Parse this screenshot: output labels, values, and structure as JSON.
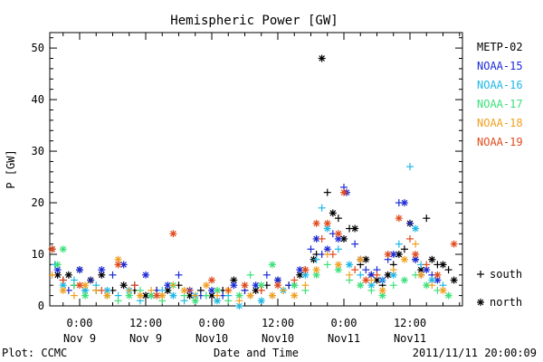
{
  "colors": {
    "METP-02": "#000000",
    "NOAA-15": "#1d2bd6",
    "NOAA-16": "#1fb8e6",
    "NOAA-17": "#3ce07a",
    "NOAA-18": "#f0a020",
    "NOAA-19": "#e04a1c"
  },
  "footer": {
    "left": "Plot: CCMC",
    "right": "2011/11/11 20:00:09"
  },
  "chart_data": {
    "type": "scatter",
    "title": "Hemispheric Power [GW]",
    "xlabel": "Date and Time",
    "ylabel": "P [GW]",
    "ylim": [
      0,
      53
    ],
    "xlim_hours": [
      -3,
      40
    ],
    "yticks": [
      0,
      10,
      20,
      30,
      40,
      50
    ],
    "xticks": [
      {
        "hour": 0,
        "top": "0:00",
        "bottom": "Nov 9"
      },
      {
        "hour": 12,
        "top": "12:00",
        "bottom": "Nov 9"
      },
      {
        "hour": 24,
        "top": "0:00",
        "bottom": "Nov10"
      },
      {
        "hour": 36,
        "top": "12:00",
        "bottom": "Nov10"
      },
      {
        "hour": 48,
        "top": "0:00",
        "bottom": "Nov11"
      },
      {
        "hour": 60,
        "top": "12:00",
        "bottom": "Nov11"
      }
    ],
    "legend_markers": [
      {
        "symbol": "+",
        "label": "south"
      },
      {
        "symbol": "*",
        "label": "north"
      }
    ],
    "series": [
      {
        "name": "METP-02",
        "points": [
          [
            -5.5,
            12,
            "+"
          ],
          [
            -5,
            11,
            "*"
          ],
          [
            -4.5,
            8,
            "+"
          ],
          [
            -4,
            6,
            "*"
          ],
          [
            -3,
            5,
            "+"
          ],
          [
            -2,
            6,
            "*"
          ],
          [
            -1,
            4,
            "+"
          ],
          [
            0,
            7,
            "*"
          ],
          [
            1,
            3,
            "+"
          ],
          [
            2,
            5,
            "*"
          ],
          [
            3,
            3,
            "+"
          ],
          [
            4,
            6,
            "*"
          ],
          [
            6,
            3,
            "+"
          ],
          [
            8,
            4,
            "*"
          ],
          [
            10,
            3,
            "+"
          ],
          [
            12,
            2,
            "*"
          ],
          [
            14,
            3,
            "+"
          ],
          [
            16,
            3,
            "*"
          ],
          [
            18,
            4,
            "+"
          ],
          [
            20,
            2,
            "*"
          ],
          [
            22,
            3,
            "+"
          ],
          [
            24,
            2,
            "*"
          ],
          [
            26,
            3,
            "+"
          ],
          [
            28,
            5,
            "*"
          ],
          [
            30,
            3,
            "+"
          ],
          [
            32,
            3,
            "*"
          ],
          [
            34,
            4,
            "+"
          ],
          [
            36,
            5,
            "*"
          ],
          [
            38,
            4,
            "+"
          ],
          [
            40,
            6,
            "*"
          ],
          [
            41,
            7,
            "+"
          ],
          [
            42.5,
            9,
            "*"
          ],
          [
            43,
            10,
            "+"
          ],
          [
            44,
            48,
            "*"
          ],
          [
            45,
            22,
            "+"
          ],
          [
            46,
            18,
            "*"
          ],
          [
            47,
            17,
            "+"
          ],
          [
            48,
            13,
            "*"
          ],
          [
            49,
            15,
            "+"
          ],
          [
            50,
            15,
            "*"
          ],
          [
            51,
            8,
            "+"
          ],
          [
            52,
            9,
            "*"
          ],
          [
            53,
            6,
            "+"
          ],
          [
            54,
            5,
            "*"
          ],
          [
            55,
            4,
            "+"
          ],
          [
            56,
            6,
            "*"
          ],
          [
            57,
            8,
            "+"
          ],
          [
            58,
            10,
            "*"
          ],
          [
            59,
            11,
            "+"
          ],
          [
            60,
            16,
            "*"
          ],
          [
            61,
            9,
            "+"
          ],
          [
            62,
            7,
            "*"
          ],
          [
            63,
            17,
            "+"
          ],
          [
            64,
            9,
            "*"
          ],
          [
            65,
            8,
            "+"
          ],
          [
            66,
            8,
            "*"
          ],
          [
            67,
            7,
            "+"
          ],
          [
            68,
            5,
            "*"
          ]
        ]
      },
      {
        "name": "NOAA-15",
        "points": [
          [
            -4,
            7,
            "*"
          ],
          [
            -2,
            3,
            "+"
          ],
          [
            0,
            7,
            "*"
          ],
          [
            2,
            5,
            "+"
          ],
          [
            4,
            7,
            "*"
          ],
          [
            6,
            6,
            "+"
          ],
          [
            8,
            8,
            "*"
          ],
          [
            10,
            4,
            "+"
          ],
          [
            12,
            6,
            "*"
          ],
          [
            14,
            3,
            "+"
          ],
          [
            16,
            4,
            "*"
          ],
          [
            18,
            6,
            "+"
          ],
          [
            20,
            3,
            "*"
          ],
          [
            22,
            2,
            "+"
          ],
          [
            24,
            3,
            "*"
          ],
          [
            26,
            2,
            "+"
          ],
          [
            28,
            4,
            "*"
          ],
          [
            30,
            3,
            "+"
          ],
          [
            32,
            4,
            "*"
          ],
          [
            34,
            6,
            "+"
          ],
          [
            36,
            5,
            "*"
          ],
          [
            38,
            4,
            "+"
          ],
          [
            40,
            7,
            "*"
          ],
          [
            42,
            11,
            "+"
          ],
          [
            43,
            13,
            "*"
          ],
          [
            44,
            10,
            "+"
          ],
          [
            45,
            11,
            "*"
          ],
          [
            46,
            14,
            "+"
          ],
          [
            47,
            13,
            "*"
          ],
          [
            48,
            23,
            "+"
          ],
          [
            48.5,
            22,
            "*"
          ],
          [
            50,
            12,
            "+"
          ],
          [
            51,
            9,
            "*"
          ],
          [
            52,
            7,
            "+"
          ],
          [
            53,
            6,
            "*"
          ],
          [
            54,
            7,
            "+"
          ],
          [
            55,
            5,
            "*"
          ],
          [
            56,
            9,
            "+"
          ],
          [
            57,
            10,
            "*"
          ],
          [
            58,
            20,
            "+"
          ],
          [
            59,
            20,
            "*"
          ],
          [
            60,
            16,
            "+"
          ],
          [
            61,
            9,
            "*"
          ],
          [
            62,
            6,
            "+"
          ],
          [
            63,
            7,
            "*"
          ],
          [
            64,
            6,
            "+"
          ],
          [
            65,
            5,
            "*"
          ]
        ]
      },
      {
        "name": "NOAA-16",
        "points": [
          [
            -4.5,
            8,
            "+"
          ],
          [
            -3,
            4,
            "*"
          ],
          [
            -1,
            5,
            "+"
          ],
          [
            1,
            3,
            "*"
          ],
          [
            3,
            4,
            "+"
          ],
          [
            5,
            3,
            "*"
          ],
          [
            7,
            2,
            "+"
          ],
          [
            9,
            3,
            "*"
          ],
          [
            11,
            1,
            "+"
          ],
          [
            13,
            2,
            "*"
          ],
          [
            15,
            3,
            "+"
          ],
          [
            17,
            2,
            "*"
          ],
          [
            19,
            1,
            "+"
          ],
          [
            21,
            2,
            "*"
          ],
          [
            23,
            2,
            "+"
          ],
          [
            25,
            1,
            "*"
          ],
          [
            27,
            2,
            "+"
          ],
          [
            29,
            0,
            "*"
          ],
          [
            31,
            2,
            "+"
          ],
          [
            33,
            1,
            "*"
          ],
          [
            35,
            2,
            "+"
          ],
          [
            37,
            3,
            "*"
          ],
          [
            39,
            4,
            "+"
          ],
          [
            41,
            6,
            "*"
          ],
          [
            43,
            9,
            "+"
          ],
          [
            44,
            19,
            "+"
          ],
          [
            45,
            15,
            "*"
          ],
          [
            47,
            11,
            "+"
          ],
          [
            49,
            8,
            "*"
          ],
          [
            51,
            6,
            "+"
          ],
          [
            53,
            4,
            "*"
          ],
          [
            55,
            5,
            "+"
          ],
          [
            57,
            6,
            "*"
          ],
          [
            58,
            12,
            "+"
          ],
          [
            60,
            27,
            "+"
          ],
          [
            61,
            15,
            "*"
          ],
          [
            62,
            8,
            "+"
          ],
          [
            64,
            5,
            "*"
          ],
          [
            66,
            4,
            "+"
          ]
        ]
      },
      {
        "name": "NOAA-17",
        "points": [
          [
            -4,
            8,
            "*"
          ],
          [
            -3,
            11,
            "*"
          ],
          [
            -1,
            4,
            "+"
          ],
          [
            1,
            2,
            "*"
          ],
          [
            3,
            3,
            "+"
          ],
          [
            5,
            2,
            "*"
          ],
          [
            7,
            1,
            "+"
          ],
          [
            9,
            2,
            "*"
          ],
          [
            11,
            3,
            "+"
          ],
          [
            13,
            2,
            "*"
          ],
          [
            15,
            1,
            "+"
          ],
          [
            17,
            4,
            "*"
          ],
          [
            19,
            2,
            "+"
          ],
          [
            21,
            1,
            "*"
          ],
          [
            23,
            2,
            "+"
          ],
          [
            25,
            3,
            "*"
          ],
          [
            27,
            1,
            "+"
          ],
          [
            29,
            2,
            "*"
          ],
          [
            31,
            6,
            "+"
          ],
          [
            33,
            4,
            "*"
          ],
          [
            35,
            8,
            "*"
          ],
          [
            37,
            3,
            "+"
          ],
          [
            39,
            4,
            "*"
          ],
          [
            41,
            3,
            "+"
          ],
          [
            43,
            6,
            "*"
          ],
          [
            45,
            8,
            "+"
          ],
          [
            47,
            7,
            "*"
          ],
          [
            49,
            5,
            "+"
          ],
          [
            51,
            4,
            "*"
          ],
          [
            53,
            3,
            "+"
          ],
          [
            55,
            2,
            "*"
          ],
          [
            57,
            4,
            "+"
          ],
          [
            59,
            5,
            "*"
          ],
          [
            61,
            6,
            "+"
          ],
          [
            63,
            4,
            "*"
          ],
          [
            65,
            3,
            "+"
          ],
          [
            67,
            2,
            "*"
          ]
        ]
      },
      {
        "name": "NOAA-18",
        "points": [
          [
            -5,
            6,
            "+"
          ],
          [
            -3,
            3,
            "*"
          ],
          [
            -1,
            2,
            "+"
          ],
          [
            1,
            4,
            "*"
          ],
          [
            3,
            3,
            "+"
          ],
          [
            5,
            2,
            "*"
          ],
          [
            7,
            9,
            "*"
          ],
          [
            9,
            3,
            "+"
          ],
          [
            11,
            2,
            "*"
          ],
          [
            13,
            3,
            "+"
          ],
          [
            15,
            2,
            "*"
          ],
          [
            17,
            4,
            "+"
          ],
          [
            19,
            3,
            "*"
          ],
          [
            21,
            2,
            "+"
          ],
          [
            23,
            4,
            "*"
          ],
          [
            25,
            2,
            "+"
          ],
          [
            27,
            3,
            "*"
          ],
          [
            29,
            1,
            "+"
          ],
          [
            31,
            2,
            "*"
          ],
          [
            33,
            3,
            "+"
          ],
          [
            35,
            2,
            "*"
          ],
          [
            37,
            3,
            "+"
          ],
          [
            39,
            2,
            "*"
          ],
          [
            41,
            4,
            "+"
          ],
          [
            43,
            7,
            "*"
          ],
          [
            45,
            10,
            "+"
          ],
          [
            47,
            8,
            "*"
          ],
          [
            49,
            6,
            "+"
          ],
          [
            51,
            9,
            "*"
          ],
          [
            53,
            5,
            "+"
          ],
          [
            55,
            3,
            "*"
          ],
          [
            57,
            7,
            "+"
          ],
          [
            59,
            9,
            "*"
          ],
          [
            61,
            12,
            "+"
          ],
          [
            62,
            6,
            "*"
          ],
          [
            64,
            4,
            "+"
          ],
          [
            66,
            3,
            "*"
          ]
        ]
      },
      {
        "name": "NOAA-19",
        "points": [
          [
            -5,
            11,
            "*"
          ],
          [
            -3,
            5,
            "+"
          ],
          [
            0,
            4,
            "*"
          ],
          [
            4,
            3,
            "+"
          ],
          [
            7,
            8,
            "*"
          ],
          [
            10,
            4,
            "+"
          ],
          [
            14,
            2,
            "*"
          ],
          [
            17,
            14,
            "*"
          ],
          [
            20,
            3,
            "+"
          ],
          [
            24,
            5,
            "*"
          ],
          [
            27,
            3,
            "+"
          ],
          [
            30,
            4,
            "*"
          ],
          [
            33,
            3,
            "+"
          ],
          [
            36,
            4,
            "*"
          ],
          [
            39,
            5,
            "+"
          ],
          [
            41,
            7,
            "*"
          ],
          [
            43,
            16,
            "*"
          ],
          [
            44,
            13,
            "+"
          ],
          [
            45,
            16,
            "*"
          ],
          [
            46,
            10,
            "+"
          ],
          [
            47,
            14,
            "*"
          ],
          [
            48,
            22,
            "*"
          ],
          [
            50,
            7,
            "+"
          ],
          [
            52,
            5,
            "*"
          ],
          [
            54,
            6,
            "+"
          ],
          [
            56,
            10,
            "*"
          ],
          [
            58,
            17,
            "*"
          ],
          [
            60,
            13,
            "+"
          ],
          [
            61,
            10,
            "*"
          ],
          [
            63,
            8,
            "+"
          ],
          [
            65,
            6,
            "*"
          ],
          [
            68,
            12,
            "*"
          ]
        ]
      }
    ]
  }
}
